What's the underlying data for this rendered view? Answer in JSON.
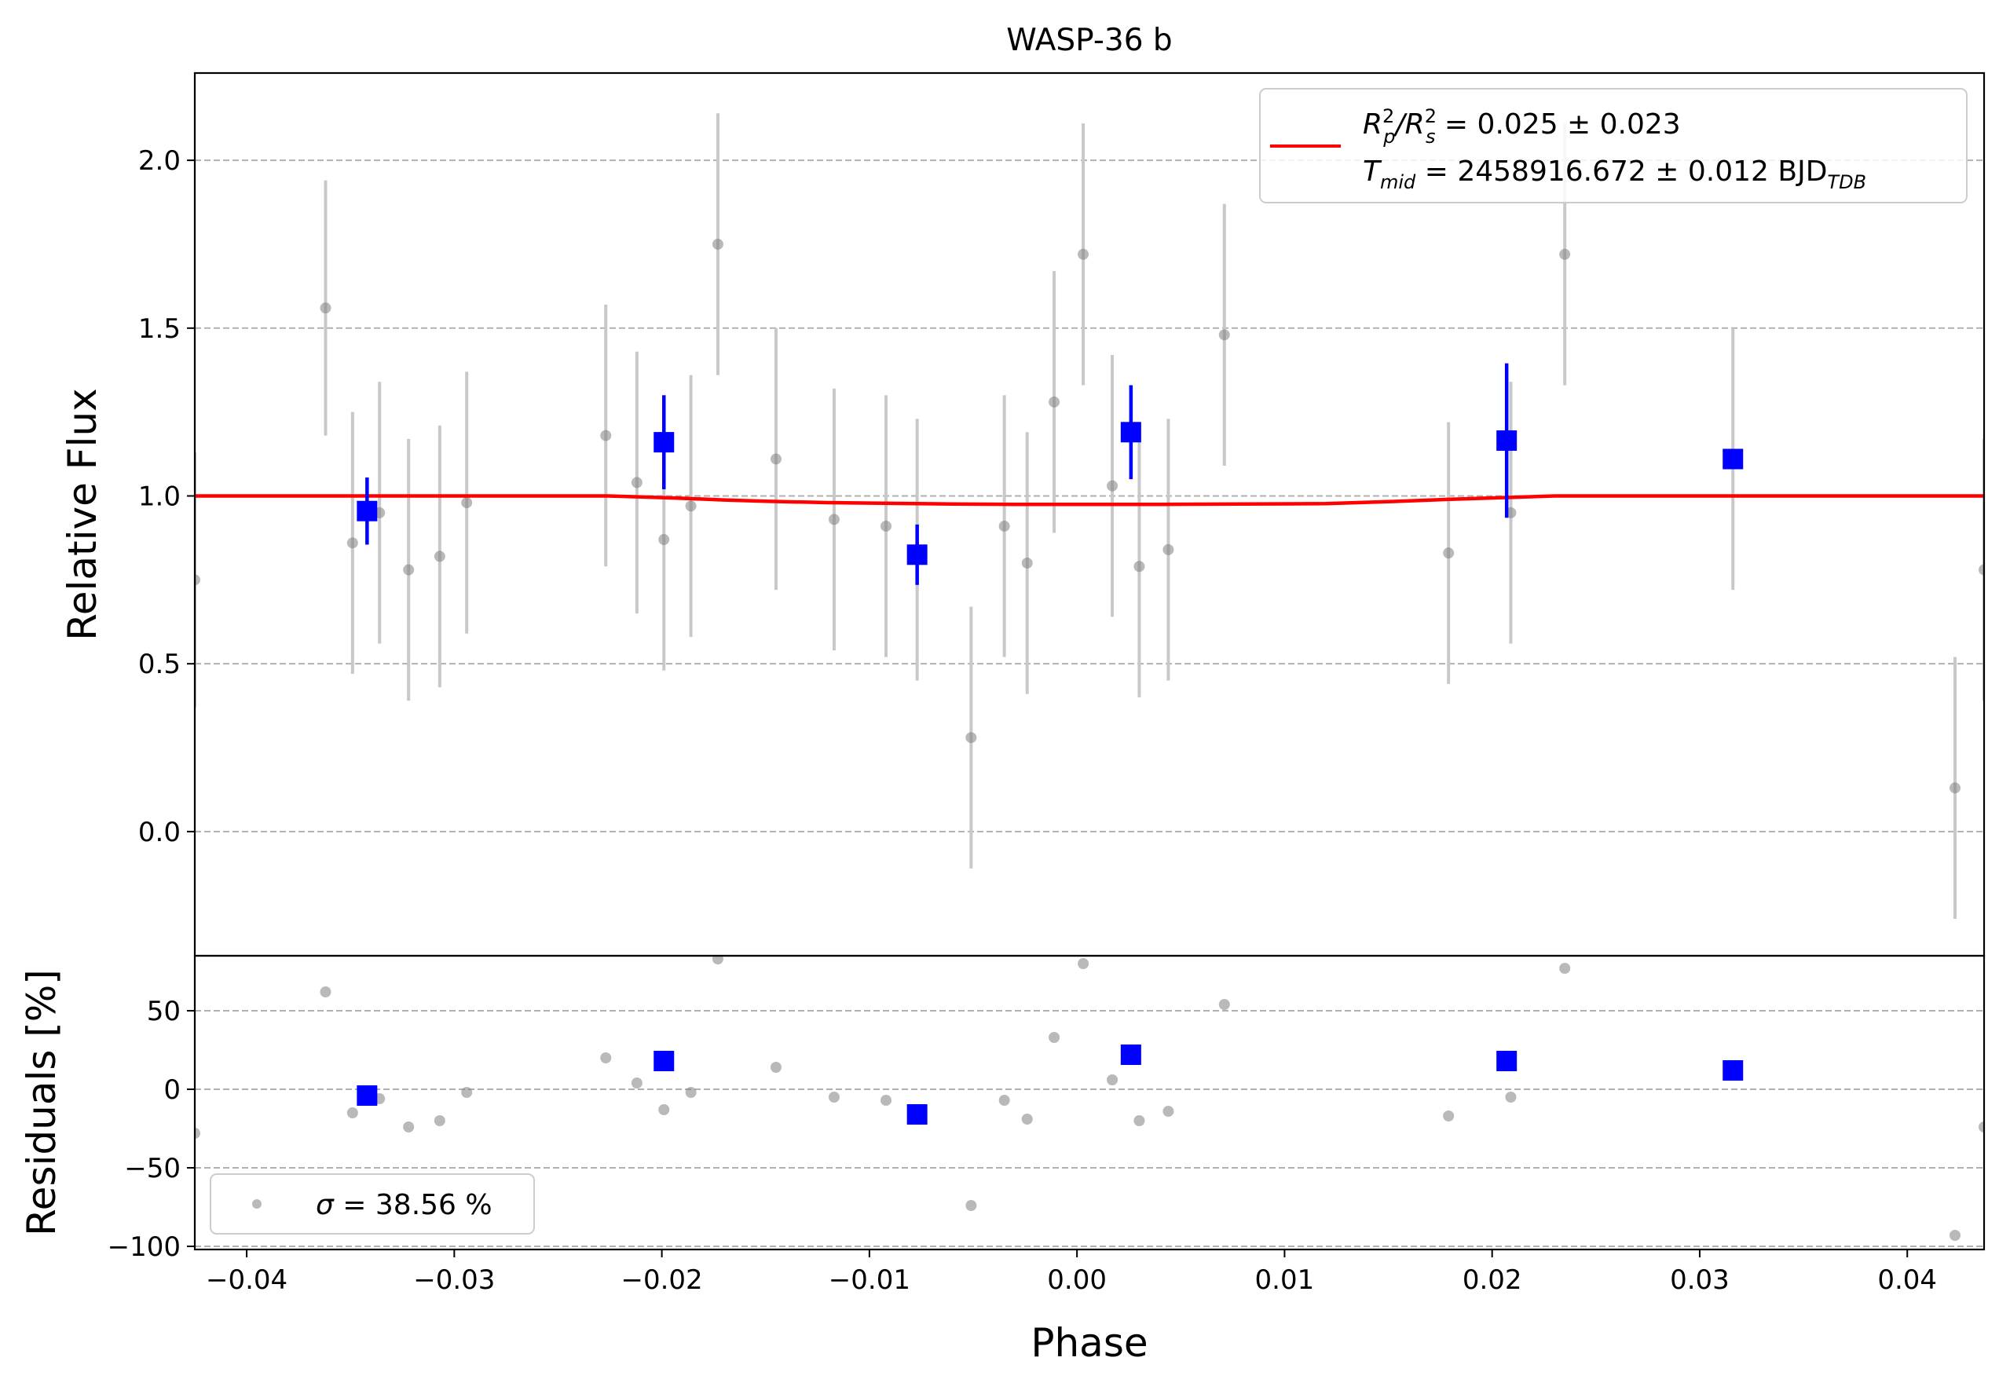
{
  "chart_data": {
    "type": "scatter",
    "title": "WASP-36 b",
    "xlabel": "Phase",
    "xlim": [
      -0.0425,
      0.0437
    ],
    "x_ticks": [
      -0.04,
      -0.03,
      -0.02,
      -0.01,
      0.0,
      0.01,
      0.02,
      0.03,
      0.04
    ],
    "x_tick_labels": [
      "−0.04",
      "−0.03",
      "−0.02",
      "−0.01",
      "0.00",
      "0.01",
      "0.02",
      "0.03",
      "0.04"
    ],
    "grid": "horizontal dashed",
    "colors": {
      "raw": "#808080",
      "errorbar_raw": "#c8c8c8",
      "binned": "#0000ff",
      "model": "#ff0000"
    },
    "panels": [
      {
        "name": "light-curve",
        "ylabel": "Relative Flux",
        "ylim": [
          -0.37,
          2.26
        ],
        "y_ticks": [
          0.0,
          0.5,
          1.0,
          1.5,
          2.0
        ],
        "y_tick_labels": [
          "0.0",
          "0.5",
          "1.0",
          "1.5",
          "2.0"
        ],
        "legend_placement": "upper right",
        "legend": {
          "model_line": {
            "color": "#ff0000",
            "line1": {
              "sym": "R",
              "sup1": "2",
              "sub1": "p",
              "slash": "/R",
              "sup2": "2",
              "sub2": "s",
              "value": " = 0.025 ± 0.023"
            },
            "line2": {
              "sym": "T",
              "sub": "mid",
              "value": " = 2458916.672 ± 0.012 BJD",
              "unit_sub": "TDB"
            }
          }
        },
        "model": {
          "x": [
            -0.0425,
            -0.024,
            -0.0226,
            -0.021,
            -0.019,
            -0.017,
            -0.015,
            -0.012,
            -0.009,
            -0.006,
            -0.003,
            0.0,
            0.004,
            0.008,
            0.012,
            0.015,
            0.018,
            0.021,
            0.023,
            0.0437
          ],
          "y": [
            1.0,
            1.0,
            1.0,
            0.997,
            0.993,
            0.988,
            0.984,
            0.98,
            0.978,
            0.976,
            0.975,
            0.975,
            0.975,
            0.976,
            0.977,
            0.983,
            0.99,
            0.996,
            1.0,
            1.0
          ]
        },
        "raw": [
          {
            "x": -0.0425,
            "y": 0.75,
            "err": 0.38
          },
          {
            "x": -0.0362,
            "y": 1.56,
            "err": 0.38
          },
          {
            "x": -0.0349,
            "y": 0.86,
            "err": 0.39
          },
          {
            "x": -0.0336,
            "y": 0.95,
            "err": 0.39
          },
          {
            "x": -0.0322,
            "y": 0.78,
            "err": 0.39
          },
          {
            "x": -0.0307,
            "y": 0.82,
            "err": 0.39
          },
          {
            "x": -0.0294,
            "y": 0.98,
            "err": 0.39
          },
          {
            "x": -0.0227,
            "y": 1.18,
            "err": 0.39
          },
          {
            "x": -0.0212,
            "y": 1.04,
            "err": 0.39
          },
          {
            "x": -0.0199,
            "y": 0.87,
            "err": 0.39
          },
          {
            "x": -0.0186,
            "y": 0.97,
            "err": 0.39
          },
          {
            "x": -0.0173,
            "y": 1.75,
            "err": 0.39
          },
          {
            "x": -0.0145,
            "y": 1.11,
            "err": 0.39
          },
          {
            "x": -0.0117,
            "y": 0.93,
            "err": 0.39
          },
          {
            "x": -0.0092,
            "y": 0.91,
            "err": 0.39
          },
          {
            "x": -0.0077,
            "y": 0.84,
            "err": 0.39
          },
          {
            "x": -0.0051,
            "y": 0.28,
            "err": 0.39
          },
          {
            "x": -0.0035,
            "y": 0.91,
            "err": 0.39
          },
          {
            "x": -0.0024,
            "y": 0.8,
            "err": 0.39
          },
          {
            "x": -0.0011,
            "y": 1.28,
            "err": 0.39
          },
          {
            "x": 0.0003,
            "y": 1.72,
            "err": 0.39
          },
          {
            "x": 0.0017,
            "y": 1.03,
            "err": 0.39
          },
          {
            "x": 0.003,
            "y": 0.79,
            "err": 0.39
          },
          {
            "x": 0.0044,
            "y": 0.84,
            "err": 0.39
          },
          {
            "x": 0.0071,
            "y": 1.48,
            "err": 0.39
          },
          {
            "x": 0.0179,
            "y": 0.83,
            "err": 0.39
          },
          {
            "x": 0.0209,
            "y": 0.95,
            "err": 0.39
          },
          {
            "x": 0.0235,
            "y": 1.72,
            "err": 0.39
          },
          {
            "x": 0.0316,
            "y": 1.11,
            "err": 0.39
          },
          {
            "x": 0.0423,
            "y": 0.13,
            "err": 0.39
          },
          {
            "x": 0.0437,
            "y": 0.78,
            "err": 0.39
          }
        ],
        "binned": [
          {
            "x": -0.0342,
            "y": 0.955,
            "err": 0.1
          },
          {
            "x": -0.0199,
            "y": 1.16,
            "err": 0.14
          },
          {
            "x": -0.0077,
            "y": 0.825,
            "err": 0.09
          },
          {
            "x": 0.0026,
            "y": 1.19,
            "err": 0.14
          },
          {
            "x": 0.0207,
            "y": 1.165,
            "err": 0.23
          },
          {
            "x": 0.0316,
            "y": 1.11,
            "err": 0.0
          }
        ]
      },
      {
        "name": "residuals",
        "ylabel": "Residuals [%]",
        "ylim": [
          -102,
          85
        ],
        "y_ticks": [
          -100,
          -50,
          0,
          50
        ],
        "y_tick_labels": [
          "−100",
          "−50",
          "0",
          "50"
        ],
        "legend_placement": "lower left",
        "legend": {
          "sigma": {
            "sym": "σ",
            "value": " = 38.56 %"
          }
        },
        "raw": [
          {
            "x": -0.0425,
            "y": -28
          },
          {
            "x": -0.0362,
            "y": 62
          },
          {
            "x": -0.0349,
            "y": -15
          },
          {
            "x": -0.0336,
            "y": -6
          },
          {
            "x": -0.0322,
            "y": -24
          },
          {
            "x": -0.0307,
            "y": -20
          },
          {
            "x": -0.0294,
            "y": -2
          },
          {
            "x": -0.0227,
            "y": 20
          },
          {
            "x": -0.0212,
            "y": 4
          },
          {
            "x": -0.0199,
            "y": -13
          },
          {
            "x": -0.0186,
            "y": -2
          },
          {
            "x": -0.0173,
            "y": 83
          },
          {
            "x": -0.0145,
            "y": 14
          },
          {
            "x": -0.0117,
            "y": -5
          },
          {
            "x": -0.0092,
            "y": -7
          },
          {
            "x": -0.0051,
            "y": -74
          },
          {
            "x": -0.0035,
            "y": -7
          },
          {
            "x": -0.0024,
            "y": -19
          },
          {
            "x": -0.0011,
            "y": 33
          },
          {
            "x": 0.0003,
            "y": 80
          },
          {
            "x": 0.0017,
            "y": 6
          },
          {
            "x": 0.003,
            "y": -20
          },
          {
            "x": 0.0044,
            "y": -14
          },
          {
            "x": 0.0071,
            "y": 54
          },
          {
            "x": 0.0179,
            "y": -17
          },
          {
            "x": 0.0209,
            "y": -5
          },
          {
            "x": 0.0235,
            "y": 77
          },
          {
            "x": 0.0423,
            "y": -93
          },
          {
            "x": 0.0437,
            "y": -24
          }
        ],
        "binned": [
          {
            "x": -0.0342,
            "y": -4
          },
          {
            "x": -0.0199,
            "y": 18
          },
          {
            "x": -0.0077,
            "y": -16
          },
          {
            "x": 0.0026,
            "y": 22
          },
          {
            "x": 0.0207,
            "y": 18
          },
          {
            "x": 0.0316,
            "y": 12
          }
        ]
      }
    ]
  }
}
